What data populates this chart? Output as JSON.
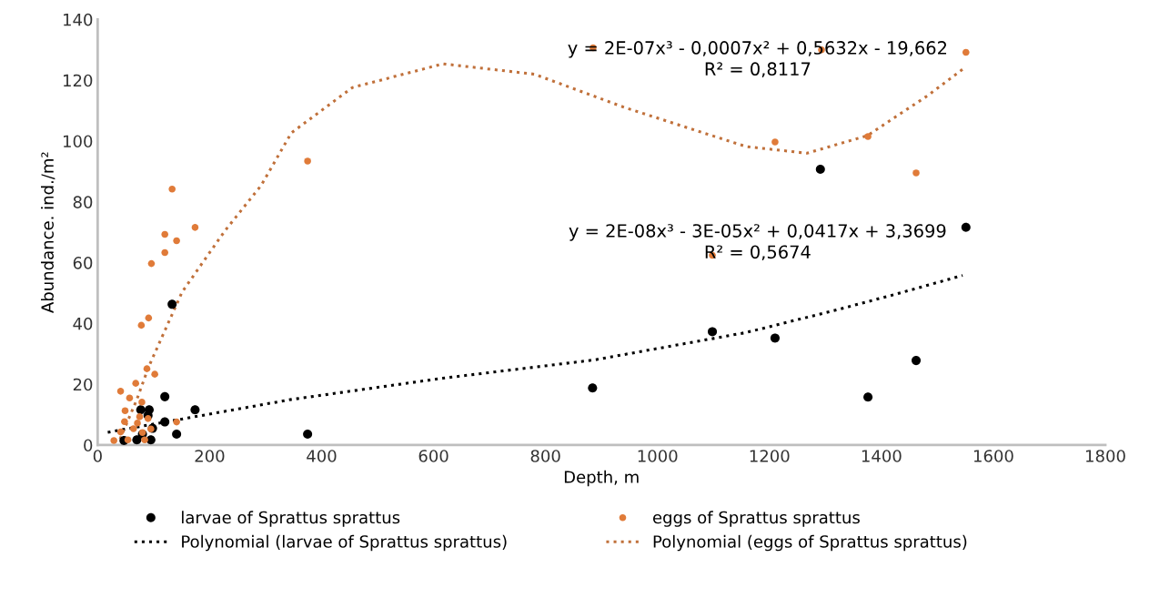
{
  "chart_data": {
    "type": "scatter",
    "xlabel": "Depth, m",
    "ylabel": "Abundance. ind./m²",
    "xlim": [
      0,
      1800
    ],
    "xticks": [
      0,
      200,
      400,
      600,
      800,
      1000,
      1200,
      1400,
      1600,
      1800
    ],
    "ylim": [
      0,
      140
    ],
    "yticks": [
      0,
      20,
      40,
      60,
      80,
      100,
      120,
      140
    ],
    "grid": false,
    "legend": "bottom",
    "series": [
      {
        "name": "larvae of Sprattus sprattus",
        "marker": "circle",
        "color": "#000000",
        "x": [
          133,
          120,
          174,
          77,
          92,
          120,
          98,
          141,
          90,
          47,
          70,
          95,
          80,
          375,
          884,
          1098,
          1210,
          1291,
          1376,
          1462,
          1551
        ],
        "values": [
          46.3,
          15.9,
          11.6,
          11.6,
          11.6,
          7.6,
          5.5,
          3.6,
          9.7,
          1.5,
          1.7,
          1.7,
          3.6,
          3.6,
          18.8,
          37.3,
          35.2,
          90.7,
          15.8,
          27.8,
          71.6
        ]
      },
      {
        "name": "eggs of Sprattus sprattus",
        "marker": "circle",
        "color": "#e07b39",
        "x": [
          133,
          174,
          120,
          141,
          120,
          96,
          91,
          78,
          88,
          102,
          68,
          41,
          57,
          79,
          49,
          75,
          141,
          48,
          71,
          90,
          64,
          95,
          41,
          80,
          29,
          54,
          84,
          375,
          885,
          1098,
          1210,
          1293,
          1376,
          1462,
          1551
        ],
        "values": [
          84.2,
          71.6,
          69.3,
          67.2,
          63.3,
          59.7,
          41.8,
          39.4,
          25.1,
          23.3,
          20.3,
          17.7,
          15.5,
          14.1,
          11.3,
          9.3,
          7.6,
          7.7,
          7.2,
          8.7,
          5.4,
          5.3,
          4.3,
          4.1,
          1.5,
          1.7,
          1.7,
          93.4,
          130.7,
          62.4,
          99.7,
          130,
          101.5,
          89.5,
          129.2
        ]
      },
      {
        "name": "Polynomial (larvae of Sprattus sprattus)",
        "type": "line",
        "line_style": "dotted",
        "marker": "none",
        "color": "#000000",
        "x": [
          18,
          346,
          617,
          887,
          1158,
          1321,
          1429,
          1545
        ],
        "values": [
          4.2,
          15,
          22,
          28,
          37,
          44.5,
          49.8,
          55.8
        ]
      },
      {
        "name": "Polynomial (eggs of Sprattus sprattus)",
        "type": "line",
        "line_style": "dotted",
        "marker": "none",
        "color": "#c0703a",
        "x": [
          40,
          70,
          91,
          151,
          227,
          292,
          346,
          455,
          617,
          780,
          942,
          1158,
          1267,
          1375,
          1483,
          1545
        ],
        "values": [
          2,
          15,
          25.7,
          50.4,
          70.4,
          85.4,
          102.7,
          117.6,
          125.4,
          122,
          111,
          98.2,
          96,
          101.8,
          115,
          123.6
        ]
      }
    ],
    "annotations": [
      "y = 2E-07x³ - 0,0007x² + 0,5632x - 19,662\nR² = 0,8117",
      "y = 2E-08x³ - 3E-05x² + 0,0417x + 3,3699\nR² = 0,5674"
    ]
  }
}
